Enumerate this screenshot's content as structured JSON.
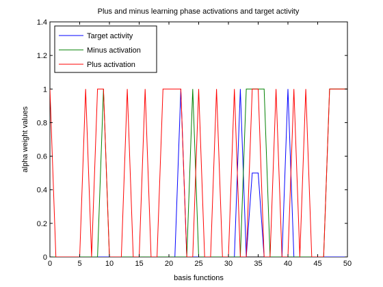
{
  "chart_data": {
    "type": "line",
    "title": "Plus and minus learning phase activations and target activity",
    "xlabel": "basis functions",
    "ylabel": "alpha weight values",
    "xlim": [
      0,
      50
    ],
    "ylim": [
      0,
      1.4
    ],
    "xticks": [
      0,
      5,
      10,
      15,
      20,
      25,
      30,
      35,
      40,
      45,
      50
    ],
    "yticks": [
      0,
      0.2,
      0.4,
      0.6,
      0.8,
      1,
      1.2,
      1.4
    ],
    "xtick_labels": [
      "0",
      "5",
      "10",
      "15",
      "20",
      "25",
      "30",
      "35",
      "40",
      "45",
      "50"
    ],
    "ytick_labels": [
      "0",
      "0.2",
      "0.4",
      "0.6",
      "0.8",
      "1",
      "1.2",
      "1.4"
    ],
    "grid": false,
    "legend_position": "top-left",
    "series": [
      {
        "name": "Target activity",
        "color": "#0000ff",
        "x": [
          0,
          1,
          2,
          3,
          4,
          5,
          6,
          7,
          8,
          9,
          10,
          11,
          12,
          13,
          14,
          15,
          16,
          17,
          18,
          19,
          20,
          21,
          22,
          23,
          24,
          25,
          26,
          27,
          28,
          29,
          30,
          31,
          32,
          33,
          34,
          35,
          36,
          37,
          38,
          39,
          40,
          41,
          42,
          43,
          44,
          45,
          46,
          47,
          48,
          49,
          50
        ],
        "y": [
          0,
          0,
          0,
          0,
          0,
          0,
          0,
          0,
          0,
          0,
          0,
          0,
          0,
          0,
          0,
          0,
          0,
          0,
          0,
          0,
          0,
          0,
          1,
          0,
          0,
          0,
          0,
          0,
          0,
          0,
          0,
          0,
          1,
          0,
          0.5,
          0.5,
          0,
          0,
          0,
          0,
          1,
          0,
          0,
          0,
          0,
          0,
          0,
          0,
          0,
          0,
          0
        ]
      },
      {
        "name": "Minus activation",
        "color": "#008000",
        "x": [
          0,
          1,
          2,
          3,
          4,
          5,
          6,
          7,
          8,
          9,
          10,
          11,
          12,
          13,
          14,
          15,
          16,
          17,
          18,
          19,
          20,
          21,
          22,
          23,
          24,
          25,
          26,
          27,
          28,
          29,
          30,
          31,
          32,
          33,
          34,
          35,
          36,
          37,
          38,
          39,
          40,
          41,
          42,
          43,
          44,
          45,
          46,
          47,
          48,
          49,
          50
        ],
        "y": [
          0,
          0,
          0,
          0,
          0,
          0,
          0,
          0,
          0,
          1,
          0,
          0,
          0,
          0,
          0,
          0,
          0,
          0,
          0,
          0,
          0,
          0,
          0,
          0,
          1,
          0,
          0,
          0,
          0,
          0,
          0,
          0,
          0,
          1,
          1,
          1,
          1,
          0,
          0,
          0,
          0,
          0,
          0,
          0,
          0,
          0,
          0,
          1,
          1,
          1,
          1
        ]
      },
      {
        "name": "Plus activation",
        "color": "#ff0000",
        "x": [
          0,
          1,
          2,
          3,
          4,
          5,
          6,
          7,
          8,
          9,
          10,
          11,
          12,
          13,
          14,
          15,
          16,
          17,
          18,
          19,
          20,
          21,
          22,
          23,
          24,
          25,
          26,
          27,
          28,
          29,
          30,
          31,
          32,
          33,
          34,
          35,
          36,
          37,
          38,
          39,
          40,
          41,
          42,
          43,
          44,
          45,
          46,
          47,
          48,
          49,
          50
        ],
        "y": [
          1,
          0,
          0,
          0,
          0,
          0,
          1,
          0,
          1,
          1,
          0,
          0,
          0,
          1,
          0,
          0,
          1,
          0,
          0,
          1,
          1,
          1,
          1,
          0,
          0,
          1,
          0,
          0,
          1,
          0,
          0,
          1,
          0,
          0,
          1,
          1,
          0,
          0,
          1,
          0,
          0,
          1,
          0,
          1,
          0,
          0,
          0,
          1,
          1,
          1,
          1
        ]
      }
    ]
  }
}
